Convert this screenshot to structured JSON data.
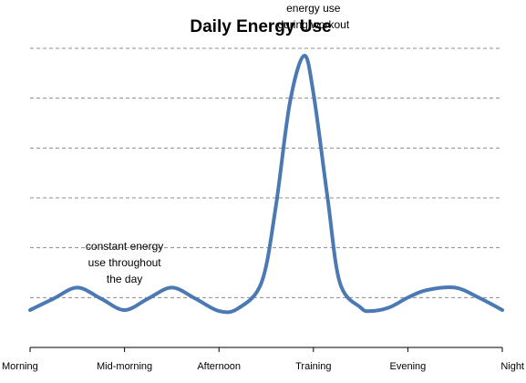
{
  "chart_data": {
    "type": "line",
    "title": "Daily Energy Use",
    "xlabel": "",
    "ylabel": "",
    "categories": [
      "Morning",
      "Mid-morning",
      "Afternoon",
      "Training",
      "Evening",
      "Night"
    ],
    "x_range": [
      0,
      5
    ],
    "ylim": [
      0,
      6
    ],
    "grid": true,
    "legend": "none",
    "colors": {
      "series": "#4a79b3",
      "grid": "#8c8c8c"
    },
    "series": [
      {
        "values": [
          [
            0,
            0.75
          ],
          [
            0.25,
            0.98
          ],
          [
            0.5,
            1.2
          ],
          [
            0.75,
            0.98
          ],
          [
            1,
            0.75
          ],
          [
            1.25,
            0.98
          ],
          [
            1.5,
            1.2
          ],
          [
            1.75,
            0.98
          ],
          [
            2,
            0.73
          ],
          [
            2.2,
            0.78
          ],
          [
            2.45,
            1.3
          ],
          [
            2.6,
            2.8
          ],
          [
            2.75,
            4.9
          ],
          [
            2.9,
            5.85
          ],
          [
            3.0,
            5.1
          ],
          [
            3.15,
            3.0
          ],
          [
            3.28,
            1.3
          ],
          [
            3.5,
            0.8
          ],
          [
            3.6,
            0.73
          ],
          [
            3.8,
            0.8
          ],
          [
            4.0,
            1.0
          ],
          [
            4.2,
            1.15
          ],
          [
            4.5,
            1.2
          ],
          [
            4.75,
            1.0
          ],
          [
            5.0,
            0.75
          ]
        ]
      }
    ],
    "annotations": [
      {
        "text": [
          "constant energy",
          "use throughout",
          "the day"
        ],
        "x": 1.0,
        "y": 1.3
      },
      {
        "text": [
          "energy use",
          "during workout"
        ],
        "x": 3.0,
        "y": 6.4
      }
    ]
  }
}
